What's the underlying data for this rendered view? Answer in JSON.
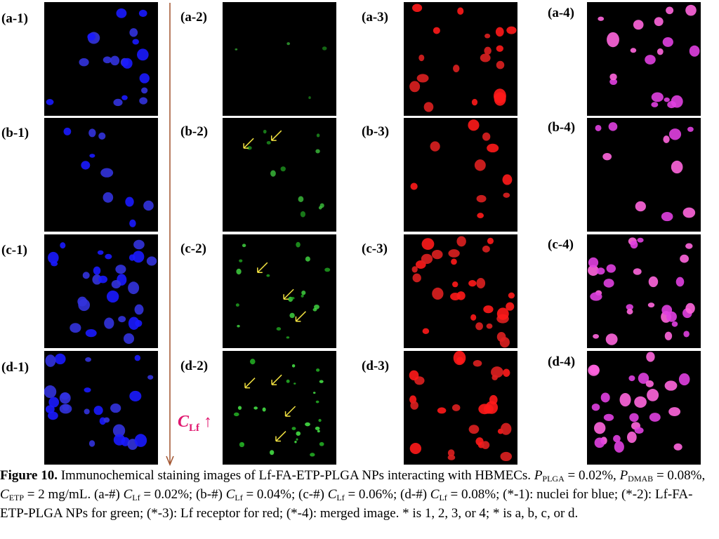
{
  "panels": {
    "rows": [
      [
        "(a-1)",
        "(a-2)",
        "(a-3)",
        "(a-4)"
      ],
      [
        "(b-1)",
        "(b-2)",
        "(b-3)",
        "(b-4)"
      ],
      [
        "(c-1)",
        "(c-2)",
        "(c-3)",
        "(c-4)"
      ],
      [
        "(d-1)",
        "(d-2)",
        "(d-3)",
        "(d-4)"
      ]
    ]
  },
  "axis_label": {
    "symbol": "C",
    "subscript": "Lf",
    "arrow": "↑"
  },
  "caption": {
    "parts": [
      "Figure 10.",
      " Immunochemical staining images of Lf-FA-ETP-PLGA NPs interacting with HBMECs. ",
      "P",
      "PLGA",
      " = 0.02%, ",
      "P",
      "DMAB",
      " = 0.08%, ",
      "C",
      "ETP",
      " = 2 mg/mL. (a-#) ",
      "C",
      "Lf",
      " = 0.02%; (b-#) ",
      "C",
      "Lf",
      " = 0.04%; (c-#) ",
      "C",
      "Lf",
      " = 0.06%; (d-#) ",
      "C",
      "Lf",
      " = 0.08%; (*-1): nuclei for blue; (*-2): Lf-FA-ETP-PLGA NPs for green; (*-3): Lf receptor for red; (*-4): merged image. * is 1, 2, 3, or 4; * is a, b, c, or d."
    ]
  }
}
